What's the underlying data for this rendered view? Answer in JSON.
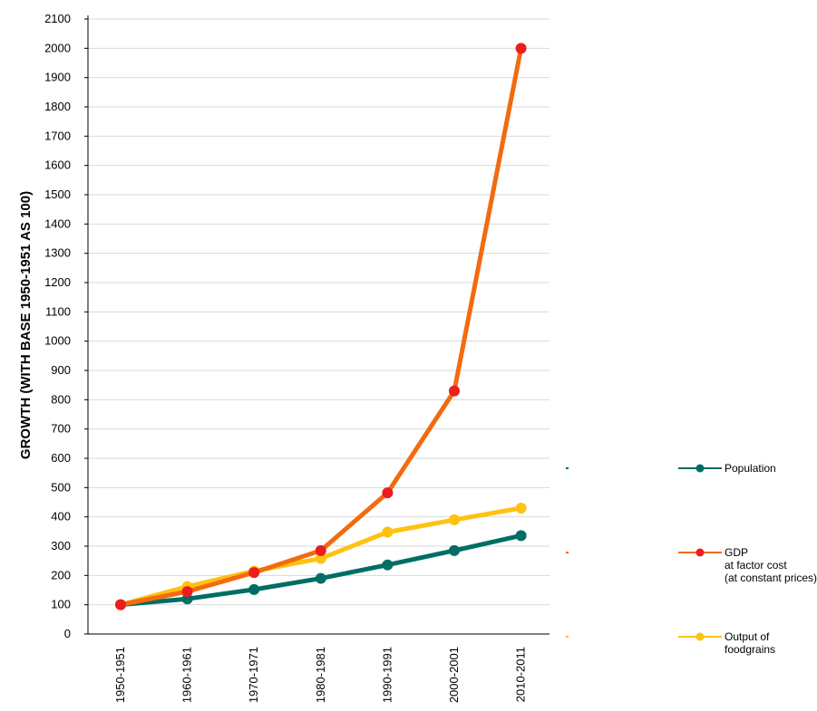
{
  "chart_data": {
    "type": "line",
    "title": "",
    "xlabel": "",
    "ylabel": "GROWTH (WITH BASE 1950-1951 AS 100)",
    "ylim": [
      0,
      2100
    ],
    "yticks": [
      0,
      100,
      200,
      300,
      400,
      500,
      600,
      700,
      800,
      900,
      1000,
      1100,
      1200,
      1300,
      1400,
      1500,
      1600,
      1700,
      1800,
      1900,
      2000,
      2100
    ],
    "grid": true,
    "legend_position": "right",
    "categories": [
      "1950-1951",
      "1960-1961",
      "1970-1971",
      "1980-1981",
      "1990-1991",
      "2000-2001",
      "2010-2011"
    ],
    "series": [
      {
        "name": "Population",
        "legend_lines": [
          "Population"
        ],
        "line_color": "#006e64",
        "marker_color": "#006e64",
        "values": [
          100,
          120,
          152,
          190,
          236,
          285,
          336
        ]
      },
      {
        "name": "GDP at factor cost (at constant prices)",
        "legend_lines": [
          "GDP",
          "at factor cost",
          "(at constant prices)"
        ],
        "line_color": "#f26b0f",
        "marker_color": "#ee1c1c",
        "values": [
          100,
          145,
          210,
          285,
          482,
          830,
          2000
        ]
      },
      {
        "name": "Output of foodgrains",
        "legend_lines": [
          "Output of",
          "foodgrains"
        ],
        "line_color": "#ffc20e",
        "marker_color": "#ffc20e",
        "values": [
          100,
          162,
          215,
          258,
          348,
          390,
          430
        ]
      }
    ]
  }
}
